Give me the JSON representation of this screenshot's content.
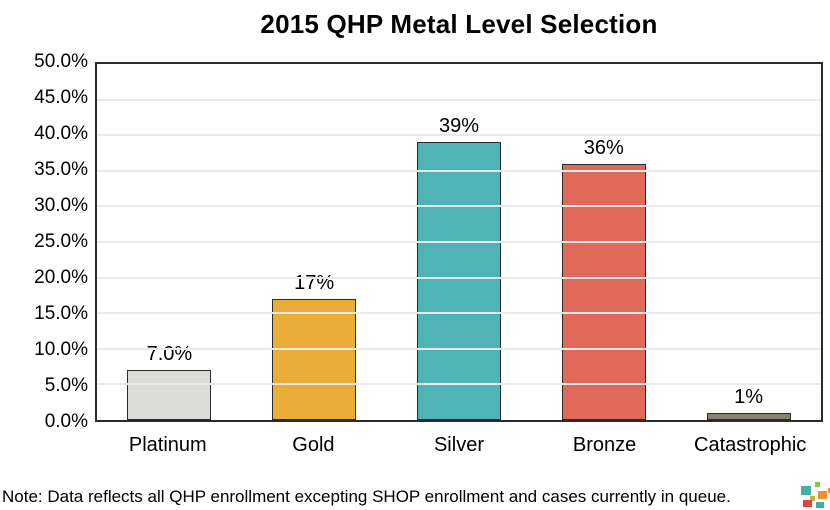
{
  "chart_data": {
    "type": "bar",
    "title": "2015 QHP Metal Level Selection",
    "categories": [
      "Platinum",
      "Gold",
      "Silver",
      "Bronze",
      "Catastrophic"
    ],
    "values": [
      7,
      17,
      39,
      36,
      1
    ],
    "value_labels": [
      "7.0%",
      "17%",
      "39%",
      "36%",
      "1%"
    ],
    "bar_colors": [
      "#dcdcd8",
      "#eaae38",
      "#4fb4b6",
      "#e0695a",
      "#8a8272"
    ],
    "bar_border_color": "#2b2b2b",
    "xlabel": "",
    "ylabel": "",
    "ylim": [
      0,
      50
    ],
    "ytick_step": 5,
    "ytick_labels": [
      "0.0%",
      "5.0%",
      "10.0%",
      "15.0%",
      "20.0%",
      "25.0%",
      "30.0%",
      "35.0%",
      "40.0%",
      "45.0%",
      "50.0%"
    ],
    "grid": true,
    "legend_position": "none"
  },
  "note": {
    "text": "Note: Data reflects all QHP enrollment excepting SHOP enrollment and cases currently in queue."
  },
  "logo": {
    "name": "mosaic-logo",
    "colors": [
      "#45b0a8",
      "#8bc53f",
      "#f0902e",
      "#c2b23c",
      "#d9453f",
      "#3aaf9f"
    ]
  }
}
